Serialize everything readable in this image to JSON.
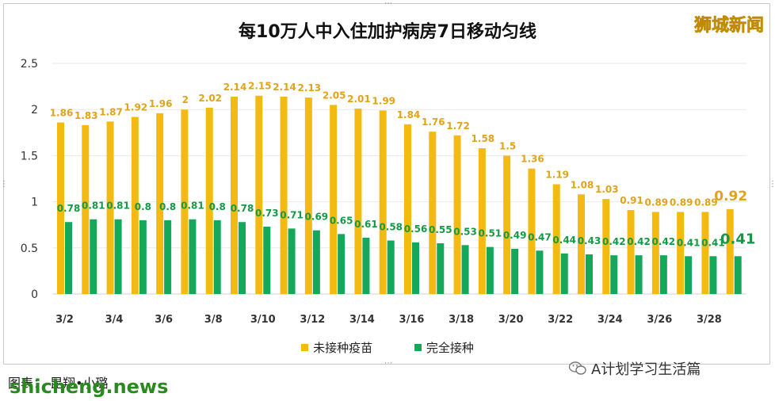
{
  "header": {
    "title": "每10万人中入住加护病房7日移动匀线",
    "brand": "狮城新闻"
  },
  "legend": {
    "unvaccinated": "未接种疫苗",
    "vaccinated": "完全接种"
  },
  "footer": {
    "caption": "图表：  昆翔•小璐",
    "site": "shicheng.news",
    "wechat": "A计划学习生活篇"
  },
  "colors": {
    "unvaccinated": "#f3bb12",
    "vaccinated": "#14a85a",
    "label_unvaccinated": "#e0a31a",
    "label_vaccinated": "#139a47"
  },
  "chart_data": {
    "type": "bar",
    "title": "每10万人中入住加护病房7日移动匀线",
    "xlabel": "",
    "ylabel": "",
    "ylim": [
      0,
      2.5
    ],
    "yticks": [
      "0",
      "0.5",
      "1",
      "1.5",
      "2",
      "2.5"
    ],
    "ytick_values": [
      0,
      0.5,
      1,
      1.5,
      2,
      2.5
    ],
    "categories": [
      "3/2",
      "3/3",
      "3/4",
      "3/5",
      "3/6",
      "3/7",
      "3/8",
      "3/9",
      "3/10",
      "3/11",
      "3/12",
      "3/13",
      "3/14",
      "3/15",
      "3/16",
      "3/17",
      "3/18",
      "3/19",
      "3/20",
      "3/21",
      "3/22",
      "3/23",
      "3/24",
      "3/25",
      "3/26",
      "3/27",
      "3/28",
      "3/29"
    ],
    "xtick_labels": [
      "3/2",
      "3/4",
      "3/6",
      "3/8",
      "3/10",
      "3/12",
      "3/14",
      "3/16",
      "3/18",
      "3/20",
      "3/22",
      "3/24",
      "3/26",
      "3/28"
    ],
    "series": [
      {
        "name": "未接种疫苗",
        "values": [
          1.86,
          1.83,
          1.87,
          1.92,
          1.96,
          2,
          2.02,
          2.14,
          2.15,
          2.14,
          2.13,
          2.05,
          2.01,
          1.99,
          1.84,
          1.76,
          1.72,
          1.58,
          1.5,
          1.36,
          1.19,
          1.08,
          1.03,
          0.91,
          0.89,
          0.89,
          0.89,
          0.92
        ]
      },
      {
        "name": "完全接种",
        "values": [
          0.78,
          0.81,
          0.81,
          0.8,
          0.8,
          0.81,
          0.8,
          0.78,
          0.73,
          0.71,
          0.69,
          0.65,
          0.61,
          0.58,
          0.56,
          0.55,
          0.53,
          0.51,
          0.49,
          0.47,
          0.44,
          0.43,
          0.42,
          0.42,
          0.42,
          0.41,
          0.41,
          0.41
        ]
      }
    ]
  }
}
